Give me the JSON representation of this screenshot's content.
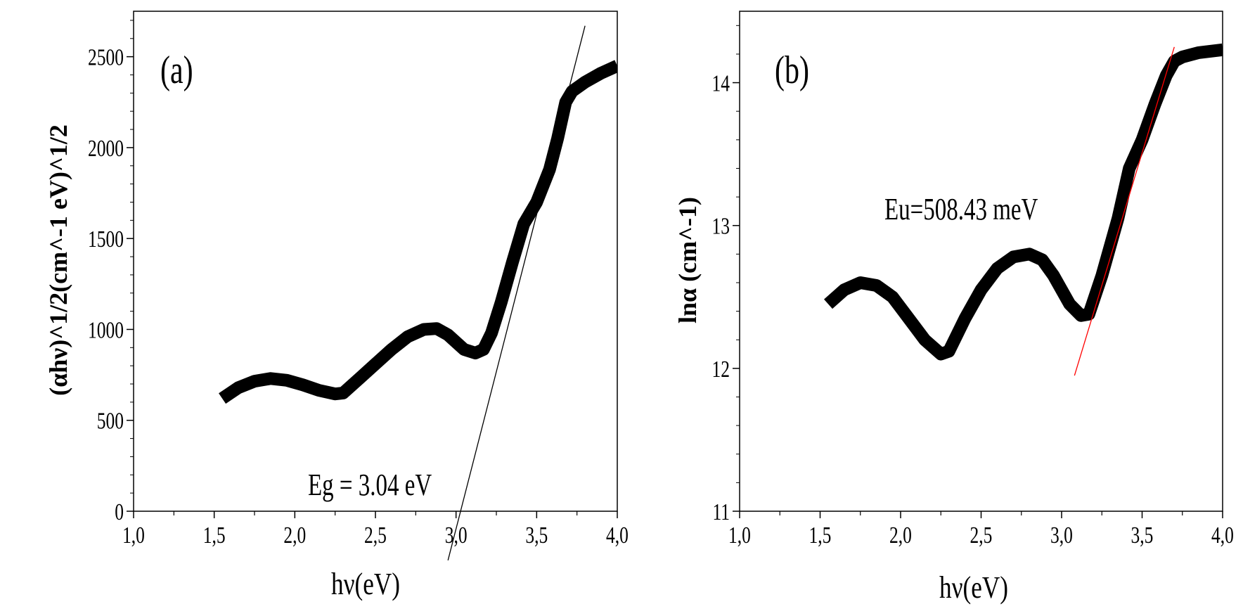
{
  "chart_data": [
    {
      "type": "line",
      "panel_label": "(a)",
      "xlabel": "hν(eV)",
      "ylabel": "(αhν)^1/2(cm^-1 eV)^1/2",
      "xlim": [
        1.0,
        4.0
      ],
      "ylim": [
        0,
        2750
      ],
      "x_ticks": [
        1.0,
        1.5,
        2.0,
        2.5,
        3.0,
        3.5,
        4.0
      ],
      "x_tick_labels": [
        "1,0",
        "1,5",
        "2,0",
        "2,5",
        "3,0",
        "3,5",
        "4,0"
      ],
      "y_ticks": [
        0,
        500,
        1000,
        1500,
        2000,
        2500
      ],
      "y_tick_labels": [
        "0",
        "500",
        "1000",
        "1500",
        "2000",
        "2500"
      ],
      "annotation": "Eg = 3.04 eV",
      "fit_line_color": "#000000",
      "series": [
        {
          "x": [
            1.55,
            1.65,
            1.75,
            1.85,
            1.95,
            2.05,
            2.15,
            2.25,
            2.3,
            2.4,
            2.5,
            2.6,
            2.7,
            2.8,
            2.88,
            2.95,
            3.05,
            3.12,
            3.17,
            3.22,
            3.28,
            3.35,
            3.42,
            3.5,
            3.58,
            3.63,
            3.68,
            3.72,
            3.8,
            3.9,
            4.0
          ],
          "y": [
            620,
            680,
            715,
            730,
            720,
            695,
            665,
            645,
            650,
            730,
            810,
            890,
            960,
            1000,
            1005,
            970,
            890,
            870,
            890,
            980,
            1150,
            1370,
            1580,
            1700,
            1880,
            2050,
            2250,
            2310,
            2360,
            2410,
            2450
          ]
        }
      ],
      "fit_line": {
        "x": [
          2.95,
          3.8
        ],
        "y": [
          -270,
          2670
        ]
      }
    },
    {
      "type": "line",
      "panel_label": "(b)",
      "xlabel": "hν(eV)",
      "ylabel": "lnα (cm^-1)",
      "xlim": [
        1.0,
        4.0
      ],
      "ylim": [
        11.0,
        14.5
      ],
      "x_ticks": [
        1.0,
        1.5,
        2.0,
        2.5,
        3.0,
        3.5,
        4.0
      ],
      "x_tick_labels": [
        "1,0",
        "1,5",
        "2,0",
        "2,5",
        "3,0",
        "3,5",
        "4,0"
      ],
      "y_ticks": [
        11,
        12,
        13,
        14
      ],
      "y_tick_labels": [
        "11",
        "12",
        "13",
        "14"
      ],
      "annotation": "Eu=508.43 meV",
      "fit_line_color": "#ff0000",
      "series": [
        {
          "x": [
            1.55,
            1.65,
            1.75,
            1.85,
            1.95,
            2.05,
            2.15,
            2.25,
            2.3,
            2.4,
            2.5,
            2.6,
            2.7,
            2.8,
            2.88,
            2.95,
            3.05,
            3.12,
            3.17,
            3.25,
            3.35,
            3.42,
            3.5,
            3.58,
            3.65,
            3.7,
            3.75,
            3.85,
            4.0
          ],
          "y": [
            12.45,
            12.55,
            12.6,
            12.58,
            12.5,
            12.35,
            12.2,
            12.1,
            12.12,
            12.35,
            12.55,
            12.7,
            12.78,
            12.8,
            12.76,
            12.65,
            12.45,
            12.37,
            12.38,
            12.65,
            13.05,
            13.4,
            13.6,
            13.85,
            14.05,
            14.15,
            14.18,
            14.21,
            14.23
          ]
        }
      ],
      "fit_line": {
        "x": [
          3.08,
          3.7
        ],
        "y": [
          11.95,
          14.25
        ]
      }
    }
  ]
}
